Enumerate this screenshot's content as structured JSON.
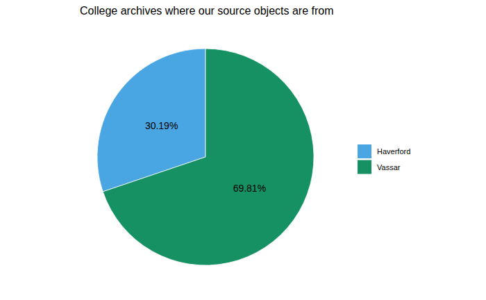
{
  "chart_data": {
    "type": "pie",
    "title": "College archives where our source objects are from",
    "categories": [
      "Haverford",
      "Vassar"
    ],
    "values": [
      30.19,
      69.81
    ],
    "value_labels": [
      "30.19%",
      "69.81%"
    ],
    "colors": [
      "#4aa6e3",
      "#169163"
    ],
    "data_labels": true,
    "legend": "right"
  }
}
